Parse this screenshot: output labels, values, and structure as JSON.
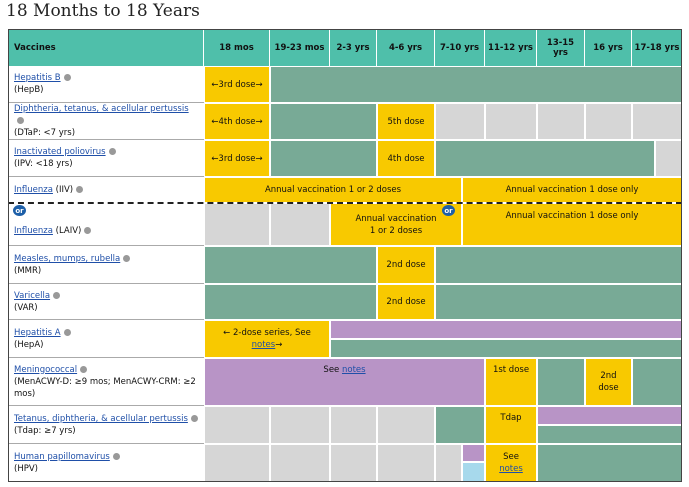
{
  "title": "18 Months to 18 Years",
  "table": {
    "headers": [
      "Vaccines",
      "18 mos",
      "19-23 mos",
      "2-3 yrs",
      "4-6 yrs",
      "7-10 yrs",
      "11-12 yrs",
      "13-15 yrs",
      "16 yrs",
      "17-18 yrs"
    ],
    "rows": [
      {
        "name": "Hepatitis B",
        "abbr": "(HepB)",
        "cells": [
          "←3rd dose→"
        ]
      },
      {
        "name": "Diphtheria, tetanus, & acellular pertussis",
        "abbr": "(DTaP: <7 yrs)",
        "cells": [
          "←4th dose→",
          "5th dose"
        ]
      },
      {
        "name": "Inactivated poliovirus",
        "abbr": "(IPV: <18 yrs)",
        "cells": [
          "←3rd dose→",
          "4th dose"
        ]
      },
      {
        "name": "Influenza",
        "abbr": "(IIV)",
        "cells": [
          "Annual vaccination 1 or 2 doses",
          "Annual vaccination 1 dose only"
        ]
      },
      {
        "badge": "or",
        "name": "Influenza",
        "abbr": "(LAIV)",
        "cells": [
          "Annual vaccination 1 or 2 doses",
          "Annual vaccination 1 dose only"
        ]
      },
      {
        "name": "Measles, mumps, rubella",
        "abbr": "(MMR)",
        "cells": [
          "2nd dose"
        ]
      },
      {
        "name": "Varicella",
        "abbr": "(VAR)",
        "cells": [
          "2nd dose"
        ]
      },
      {
        "name": "Hepatitis A",
        "abbr": "(HepA)",
        "cells": [
          {
            "before": "← 2-dose series, See",
            "link": "notes",
            "after": "→"
          }
        ]
      },
      {
        "name": "Meningococcal",
        "abbr": "(MenACWY-D: ≥9 mos; MenACWY-CRM: ≥2 mos)",
        "cells": [
          {
            "before": "See",
            "link": "notes"
          },
          "1st dose",
          "2nd dose"
        ]
      },
      {
        "name": "Tetanus, diphtheria, & acellular pertussis",
        "abbr": "(Tdap: ≥7 yrs)",
        "cells": [
          "Tdap"
        ]
      },
      {
        "name": "Human papillomavirus",
        "abbr": "(HPV)",
        "cells": [
          {
            "before": "See",
            "link": "notes"
          }
        ]
      }
    ]
  }
}
